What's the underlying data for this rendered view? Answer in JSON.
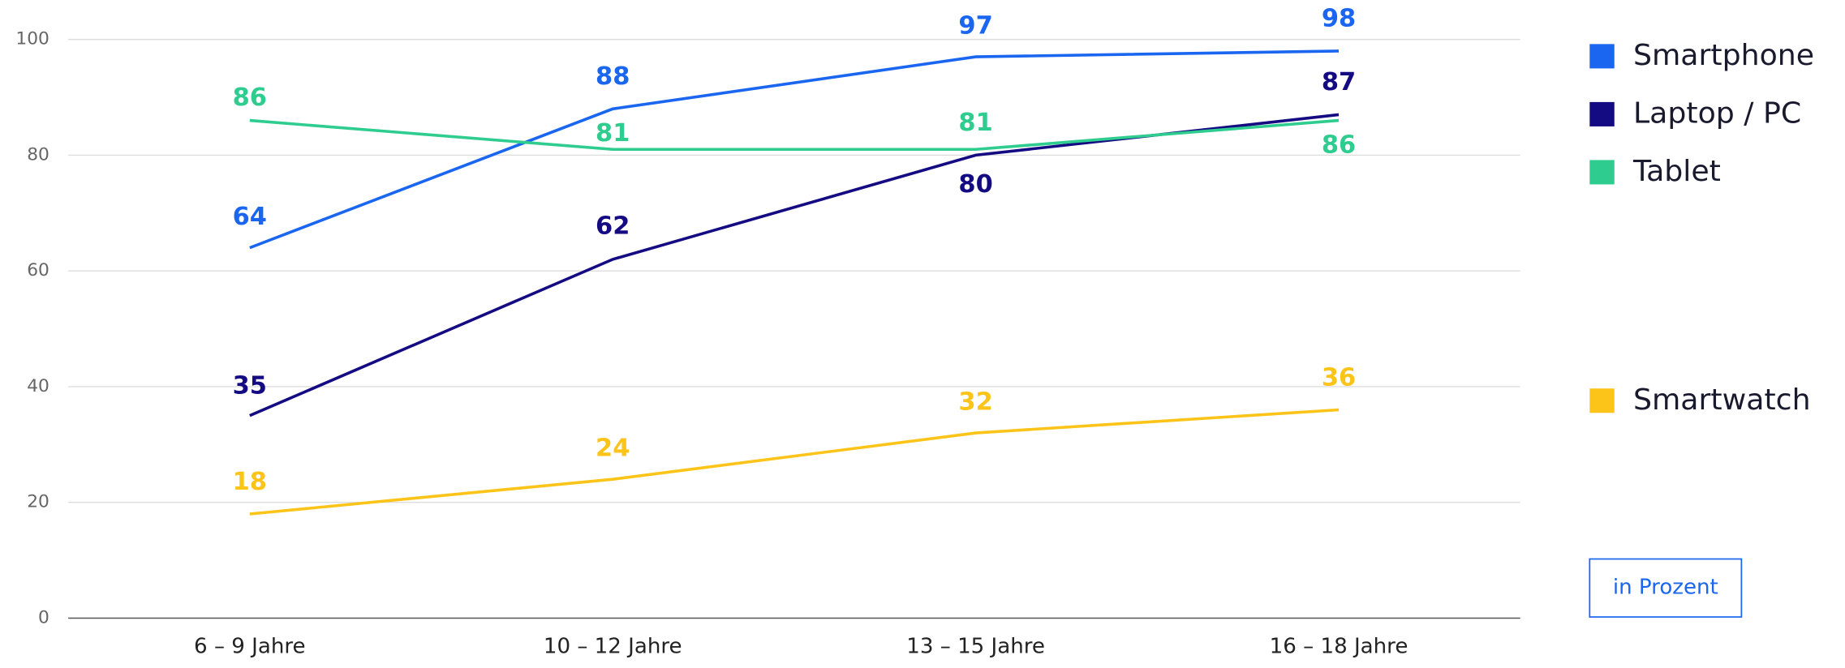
{
  "chart_data": {
    "type": "line",
    "categories": [
      "6 – 9 Jahre",
      "10 – 12 Jahre",
      "13 – 15 Jahre",
      "16 – 18 Jahre"
    ],
    "series": [
      {
        "name": "Smartphone",
        "color": "#1a66f0",
        "values": [
          64,
          88,
          97,
          98
        ]
      },
      {
        "name": "Laptop / PC",
        "color": "#140a82",
        "values": [
          35,
          62,
          80,
          87
        ]
      },
      {
        "name": "Tablet",
        "color": "#2ecc8f",
        "values": [
          86,
          81,
          81,
          86
        ]
      },
      {
        "name": "Smartwatch",
        "color": "#fcc419",
        "values": [
          18,
          24,
          32,
          36
        ]
      }
    ],
    "ylim": [
      0,
      100
    ],
    "yticks": [
      0,
      20,
      40,
      60,
      80,
      100
    ],
    "grid": true,
    "legend": "right",
    "unit_label": "in Prozent"
  }
}
